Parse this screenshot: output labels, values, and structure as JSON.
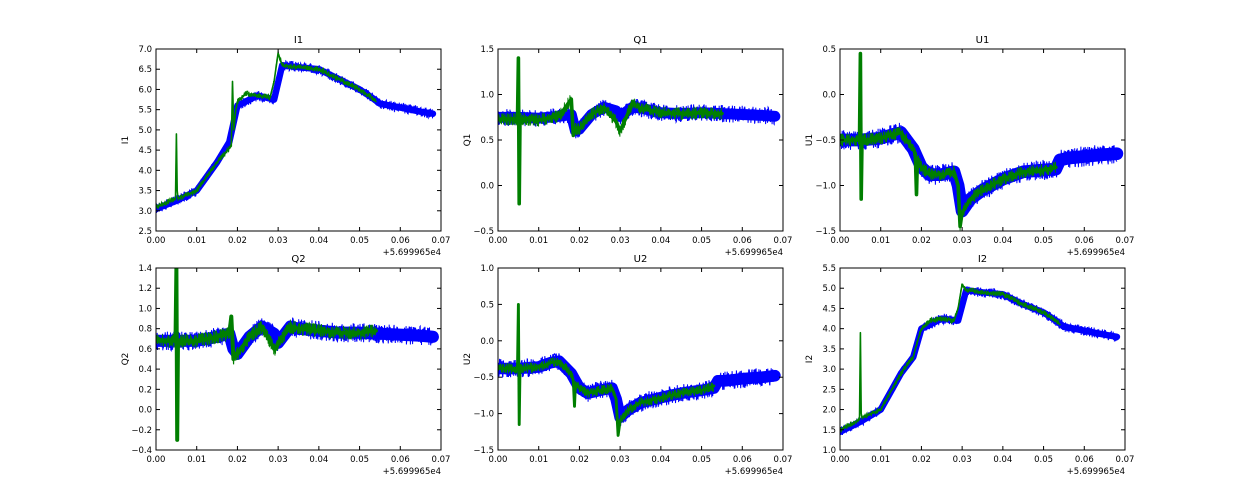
{
  "chart_data": [
    {
      "type": "line",
      "title": "I1",
      "ylabel": "I1",
      "xlim": [
        0.0,
        0.07
      ],
      "ylim": [
        2.5,
        7.0
      ],
      "x_ticks": [
        0.0,
        0.01,
        0.02,
        0.03,
        0.04,
        0.05,
        0.06,
        0.07
      ],
      "x_tick_labels": [
        "0.00",
        "0.01",
        "0.02",
        "0.03",
        "0.04",
        "0.05",
        "0.06",
        "0.07"
      ],
      "y_ticks": [
        2.5,
        3.0,
        3.5,
        4.0,
        4.5,
        5.0,
        5.5,
        6.0,
        6.5,
        7.0
      ],
      "y_tick_labels": [
        "2.5",
        "3.0",
        "3.5",
        "4.0",
        "4.5",
        "5.0",
        "5.5",
        "6.0",
        "6.5",
        "7.0"
      ],
      "x_offset_label": "+5.699965e4",
      "grid": false,
      "series": [
        {
          "color": "#0000ff",
          "band": 0.08,
          "x": [
            0.0,
            0.005,
            0.01,
            0.015,
            0.018,
            0.02,
            0.025,
            0.029,
            0.031,
            0.035,
            0.04,
            0.045,
            0.05,
            0.053,
            0.055,
            0.06,
            0.065,
            0.068
          ],
          "y": [
            3.05,
            3.25,
            3.5,
            4.2,
            4.7,
            5.6,
            5.85,
            5.75,
            6.6,
            6.55,
            6.5,
            6.25,
            6.0,
            5.8,
            5.65,
            5.55,
            5.45,
            5.4
          ]
        },
        {
          "color": "#007f00",
          "band": 0.02,
          "x": [
            0.0,
            0.0048,
            0.005,
            0.0052,
            0.0054,
            0.01,
            0.015,
            0.0185,
            0.0188,
            0.0191,
            0.0196,
            0.02,
            0.022,
            0.025,
            0.028,
            0.029,
            0.03,
            0.031,
            0.035,
            0.04,
            0.045,
            0.05,
            0.053,
            0.054
          ],
          "y": [
            3.1,
            3.3,
            4.9,
            3.5,
            3.3,
            3.5,
            4.2,
            4.6,
            6.2,
            5.0,
            5.5,
            5.7,
            5.9,
            5.85,
            5.8,
            6.2,
            6.9,
            6.6,
            6.55,
            6.5,
            6.25,
            6.0,
            5.8,
            5.7
          ]
        }
      ]
    },
    {
      "type": "line",
      "title": "Q1",
      "ylabel": "Q1",
      "xlim": [
        0.0,
        0.07
      ],
      "ylim": [
        -0.5,
        1.5
      ],
      "x_ticks": [
        0.0,
        0.01,
        0.02,
        0.03,
        0.04,
        0.05,
        0.06,
        0.07
      ],
      "x_tick_labels": [
        "0.00",
        "0.01",
        "0.02",
        "0.03",
        "0.04",
        "0.05",
        "0.06",
        "0.07"
      ],
      "y_ticks": [
        -0.5,
        0.0,
        0.5,
        1.0,
        1.5
      ],
      "y_tick_labels": [
        "−0.5",
        "0.0",
        "0.5",
        "1.0",
        "1.5"
      ],
      "x_offset_label": "+5.699965e4",
      "grid": false,
      "series": [
        {
          "color": "#0000ff",
          "band": 0.06,
          "x": [
            0.0,
            0.005,
            0.01,
            0.015,
            0.018,
            0.019,
            0.02,
            0.023,
            0.026,
            0.029,
            0.03,
            0.033,
            0.035,
            0.04,
            0.045,
            0.05,
            0.055,
            0.06,
            0.065,
            0.068
          ],
          "y": [
            0.75,
            0.75,
            0.74,
            0.76,
            0.78,
            0.6,
            0.62,
            0.78,
            0.86,
            0.82,
            0.76,
            0.86,
            0.85,
            0.8,
            0.79,
            0.8,
            0.79,
            0.78,
            0.77,
            0.76
          ],
          "spikes": [
            [
              0.005,
              1.4,
              -0.2
            ]
          ]
        },
        {
          "color": "#007f00",
          "band": 0.02,
          "x": [
            0.0,
            0.0048,
            0.005,
            0.0052,
            0.0054,
            0.01,
            0.015,
            0.018,
            0.0185,
            0.019,
            0.02,
            0.023,
            0.026,
            0.029,
            0.03,
            0.033,
            0.035,
            0.04,
            0.045,
            0.05,
            0.055
          ],
          "y": [
            0.73,
            0.73,
            1.4,
            -0.2,
            0.73,
            0.72,
            0.76,
            0.95,
            0.55,
            0.62,
            0.62,
            0.78,
            0.86,
            0.7,
            0.6,
            0.9,
            0.85,
            0.8,
            0.79,
            0.8,
            0.79
          ]
        }
      ]
    },
    {
      "type": "line",
      "title": "U1",
      "ylabel": "U1",
      "xlim": [
        0.0,
        0.07
      ],
      "ylim": [
        -1.5,
        0.5
      ],
      "x_ticks": [
        0.0,
        0.01,
        0.02,
        0.03,
        0.04,
        0.05,
        0.06,
        0.07
      ],
      "x_tick_labels": [
        "0.00",
        "0.01",
        "0.02",
        "0.03",
        "0.04",
        "0.05",
        "0.06",
        "0.07"
      ],
      "y_ticks": [
        -1.5,
        -1.0,
        -0.5,
        0.0,
        0.5
      ],
      "y_tick_labels": [
        "−1.5",
        "−1.0",
        "−0.5",
        "0.0",
        "0.5"
      ],
      "x_offset_label": "+5.699965e4",
      "grid": false,
      "series": [
        {
          "color": "#0000ff",
          "band": 0.07,
          "x": [
            0.0,
            0.005,
            0.01,
            0.013,
            0.015,
            0.018,
            0.02,
            0.022,
            0.025,
            0.028,
            0.029,
            0.03,
            0.032,
            0.035,
            0.04,
            0.045,
            0.05,
            0.053,
            0.054,
            0.056,
            0.06,
            0.065,
            0.068
          ],
          "y": [
            -0.5,
            -0.5,
            -0.48,
            -0.44,
            -0.42,
            -0.6,
            -0.8,
            -0.88,
            -0.88,
            -0.85,
            -1.0,
            -1.28,
            -1.15,
            -1.05,
            -0.93,
            -0.85,
            -0.83,
            -0.82,
            -0.72,
            -0.7,
            -0.68,
            -0.66,
            -0.65
          ]
        },
        {
          "color": "#007f00",
          "band": 0.02,
          "x": [
            0.0,
            0.0048,
            0.005,
            0.0052,
            0.0054,
            0.01,
            0.013,
            0.015,
            0.018,
            0.0185,
            0.0188,
            0.019,
            0.02,
            0.022,
            0.025,
            0.028,
            0.029,
            0.0295,
            0.03,
            0.032,
            0.035,
            0.04,
            0.045,
            0.05,
            0.053
          ],
          "y": [
            -0.5,
            -0.5,
            0.45,
            -1.15,
            -0.5,
            -0.48,
            -0.44,
            -0.42,
            -0.6,
            -0.65,
            -1.1,
            -0.7,
            -0.8,
            -0.88,
            -0.88,
            -0.85,
            -1.0,
            -1.45,
            -1.3,
            -1.15,
            -1.05,
            -0.93,
            -0.85,
            -0.83,
            -0.8
          ]
        }
      ]
    },
    {
      "type": "line",
      "title": "Q2",
      "ylabel": "Q2",
      "xlim": [
        0.0,
        0.07
      ],
      "ylim": [
        -0.4,
        1.4
      ],
      "x_ticks": [
        0.0,
        0.01,
        0.02,
        0.03,
        0.04,
        0.05,
        0.06,
        0.07
      ],
      "x_tick_labels": [
        "0.00",
        "0.01",
        "0.02",
        "0.03",
        "0.04",
        "0.05",
        "0.06",
        "0.07"
      ],
      "y_ticks": [
        -0.4,
        -0.2,
        0.0,
        0.2,
        0.4,
        0.6,
        0.8,
        1.0,
        1.2,
        1.4
      ],
      "y_tick_labels": [
        "−0.4",
        "−0.2",
        "0.0",
        "0.2",
        "0.4",
        "0.6",
        "0.8",
        "1.0",
        "1.2",
        "1.4"
      ],
      "x_offset_label": "+5.699965e4",
      "grid": false,
      "series": [
        {
          "color": "#0000ff",
          "band": 0.06,
          "x": [
            0.0,
            0.005,
            0.01,
            0.015,
            0.018,
            0.019,
            0.02,
            0.023,
            0.026,
            0.029,
            0.03,
            0.033,
            0.035,
            0.04,
            0.045,
            0.05,
            0.055,
            0.06,
            0.065,
            0.068
          ],
          "y": [
            0.68,
            0.68,
            0.68,
            0.72,
            0.75,
            0.6,
            0.55,
            0.72,
            0.82,
            0.75,
            0.66,
            0.82,
            0.8,
            0.78,
            0.76,
            0.76,
            0.75,
            0.74,
            0.73,
            0.72
          ]
        },
        {
          "color": "#007f00",
          "band": 0.02,
          "x": [
            0.0,
            0.0048,
            0.005,
            0.0052,
            0.0054,
            0.01,
            0.015,
            0.018,
            0.0185,
            0.019,
            0.02,
            0.023,
            0.026,
            0.029,
            0.0295,
            0.03,
            0.033,
            0.035,
            0.04,
            0.045,
            0.05,
            0.054
          ],
          "y": [
            0.68,
            0.68,
            1.4,
            -0.3,
            0.68,
            0.68,
            0.72,
            0.75,
            0.92,
            0.5,
            0.55,
            0.72,
            0.82,
            0.6,
            0.6,
            0.66,
            0.82,
            0.8,
            0.78,
            0.76,
            0.76,
            0.78
          ]
        }
      ]
    },
    {
      "type": "line",
      "title": "U2",
      "ylabel": "U2",
      "xlim": [
        0.0,
        0.07
      ],
      "ylim": [
        -1.5,
        1.0
      ],
      "x_ticks": [
        0.0,
        0.01,
        0.02,
        0.03,
        0.04,
        0.05,
        0.06,
        0.07
      ],
      "x_tick_labels": [
        "0.00",
        "0.01",
        "0.02",
        "0.03",
        "0.04",
        "0.05",
        "0.06",
        "0.07"
      ],
      "y_ticks": [
        -1.5,
        -1.0,
        -0.5,
        0.0,
        0.5,
        1.0
      ],
      "y_tick_labels": [
        "−1.5",
        "−1.0",
        "−0.5",
        "0.0",
        "0.5",
        "1.0"
      ],
      "x_offset_label": "+5.699965e4",
      "grid": false,
      "series": [
        {
          "color": "#0000ff",
          "band": 0.08,
          "x": [
            0.0,
            0.005,
            0.01,
            0.013,
            0.015,
            0.018,
            0.02,
            0.022,
            0.025,
            0.028,
            0.029,
            0.03,
            0.032,
            0.035,
            0.04,
            0.045,
            0.05,
            0.053,
            0.054,
            0.056,
            0.06,
            0.065,
            0.068
          ],
          "y": [
            -0.38,
            -0.38,
            -0.36,
            -0.3,
            -0.28,
            -0.45,
            -0.65,
            -0.72,
            -0.68,
            -0.65,
            -0.8,
            -1.05,
            -0.95,
            -0.85,
            -0.78,
            -0.72,
            -0.68,
            -0.65,
            -0.55,
            -0.55,
            -0.52,
            -0.5,
            -0.48
          ]
        },
        {
          "color": "#007f00",
          "band": 0.02,
          "x": [
            0.0,
            0.0048,
            0.005,
            0.0052,
            0.0054,
            0.01,
            0.013,
            0.015,
            0.018,
            0.0185,
            0.0188,
            0.019,
            0.02,
            0.022,
            0.025,
            0.028,
            0.029,
            0.0295,
            0.03,
            0.032,
            0.035,
            0.04,
            0.045,
            0.05,
            0.053
          ],
          "y": [
            -0.38,
            -0.38,
            0.5,
            -1.15,
            -0.38,
            -0.36,
            -0.3,
            -0.28,
            -0.45,
            -0.55,
            -0.9,
            -0.6,
            -0.65,
            -0.72,
            -0.68,
            -0.65,
            -0.8,
            -1.3,
            -1.1,
            -0.95,
            -0.85,
            -0.78,
            -0.72,
            -0.68,
            -0.62
          ]
        }
      ]
    },
    {
      "type": "line",
      "title": "I2",
      "ylabel": "I2",
      "xlim": [
        0.0,
        0.07
      ],
      "ylim": [
        1.0,
        5.5
      ],
      "x_ticks": [
        0.0,
        0.01,
        0.02,
        0.03,
        0.04,
        0.05,
        0.06,
        0.07
      ],
      "x_tick_labels": [
        "0.00",
        "0.01",
        "0.02",
        "0.03",
        "0.04",
        "0.05",
        "0.06",
        "0.07"
      ],
      "y_ticks": [
        1.0,
        1.5,
        2.0,
        2.5,
        3.0,
        3.5,
        4.0,
        4.5,
        5.0,
        5.5
      ],
      "y_tick_labels": [
        "1.0",
        "1.5",
        "2.0",
        "2.5",
        "3.0",
        "3.5",
        "4.0",
        "4.5",
        "5.0",
        "5.5"
      ],
      "x_offset_label": "+5.699965e4",
      "grid": false,
      "series": [
        {
          "color": "#0000ff",
          "band": 0.08,
          "x": [
            0.0,
            0.005,
            0.01,
            0.015,
            0.018,
            0.02,
            0.025,
            0.029,
            0.031,
            0.035,
            0.04,
            0.045,
            0.05,
            0.053,
            0.055,
            0.06,
            0.065,
            0.068
          ],
          "y": [
            1.45,
            1.7,
            2.0,
            2.9,
            3.3,
            4.0,
            4.25,
            4.2,
            4.95,
            4.9,
            4.85,
            4.6,
            4.4,
            4.2,
            4.05,
            3.95,
            3.85,
            3.8
          ]
        },
        {
          "color": "#007f00",
          "band": 0.02,
          "x": [
            0.0,
            0.0048,
            0.005,
            0.0052,
            0.0054,
            0.01,
            0.015,
            0.018,
            0.0185,
            0.02,
            0.022,
            0.025,
            0.028,
            0.029,
            0.03,
            0.031,
            0.035,
            0.04,
            0.045,
            0.05,
            0.053,
            0.054
          ],
          "y": [
            1.5,
            1.75,
            3.9,
            1.9,
            1.8,
            2.0,
            2.9,
            3.3,
            3.5,
            4.0,
            4.2,
            4.25,
            4.2,
            4.5,
            5.1,
            4.95,
            4.9,
            4.85,
            4.6,
            4.4,
            4.2,
            4.1
          ]
        }
      ]
    }
  ]
}
